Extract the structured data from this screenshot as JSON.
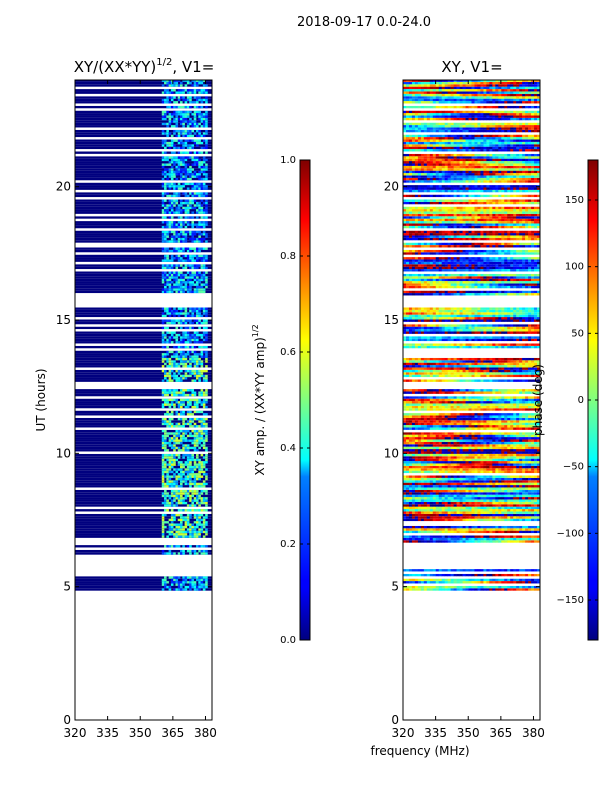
{
  "figure_title": "2018-09-17 0.0-24.0",
  "colors": {
    "background": "#ffffff",
    "flag_color": "#ffffff",
    "low_color": "#00007f"
  },
  "colormap": "jet",
  "chart_data": [
    {
      "type": "heatmap",
      "title": "XY/(XX*YY)^1/2, V1=",
      "title_main": "XY/(XX*YY)",
      "title_exp": "1/2",
      "title_tail": ", V1=",
      "xlabel": "",
      "ylabel": "UT (hours)",
      "xlim": [
        320,
        383
      ],
      "ylim": [
        0,
        24
      ],
      "xticks": [
        320,
        335,
        350,
        365,
        380
      ],
      "xtick_labels": [
        "320",
        "335",
        "350",
        "365",
        "380"
      ],
      "yticks": [
        0,
        5,
        10,
        15,
        20
      ],
      "ytick_labels": [
        "0",
        "5",
        "10",
        "15",
        "20"
      ],
      "data_start_hour": 4.85,
      "data_end_hour": 24,
      "active_band_mhz": [
        359.5,
        380
      ],
      "colorbar": {
        "label": "XY amp. / (XX*YY amp)^1/2",
        "label_main": "XY amp. / (XX*YY amp)",
        "label_exp": "1/2",
        "range": [
          0.0,
          1.0
        ],
        "ticks": [
          0.0,
          0.2,
          0.4,
          0.6,
          0.8,
          1.0
        ],
        "tick_labels": [
          "0.0",
          "0.2",
          "0.4",
          "0.6",
          "0.8",
          "1.0"
        ]
      }
    },
    {
      "type": "heatmap",
      "title": "XY, V1=",
      "xlabel": "frequency (MHz)",
      "ylabel": "",
      "xlim": [
        320,
        383
      ],
      "ylim": [
        0,
        24
      ],
      "xticks": [
        320,
        335,
        350,
        365,
        380
      ],
      "xtick_labels": [
        "320",
        "335",
        "350",
        "365",
        "380"
      ],
      "yticks": [
        0,
        5,
        10,
        15,
        20
      ],
      "ytick_labels": [
        "0",
        "5",
        "10",
        "15",
        "20"
      ],
      "data_start_hour": 4.85,
      "data_end_hour": 24,
      "colorbar": {
        "label": "phase (deg)",
        "range": [
          -180,
          180
        ],
        "ticks": [
          -150,
          -100,
          -50,
          0,
          50,
          100,
          150
        ],
        "tick_labels": [
          "−150",
          "−100",
          "−50",
          "0",
          "50",
          "100",
          "150"
        ]
      }
    }
  ]
}
